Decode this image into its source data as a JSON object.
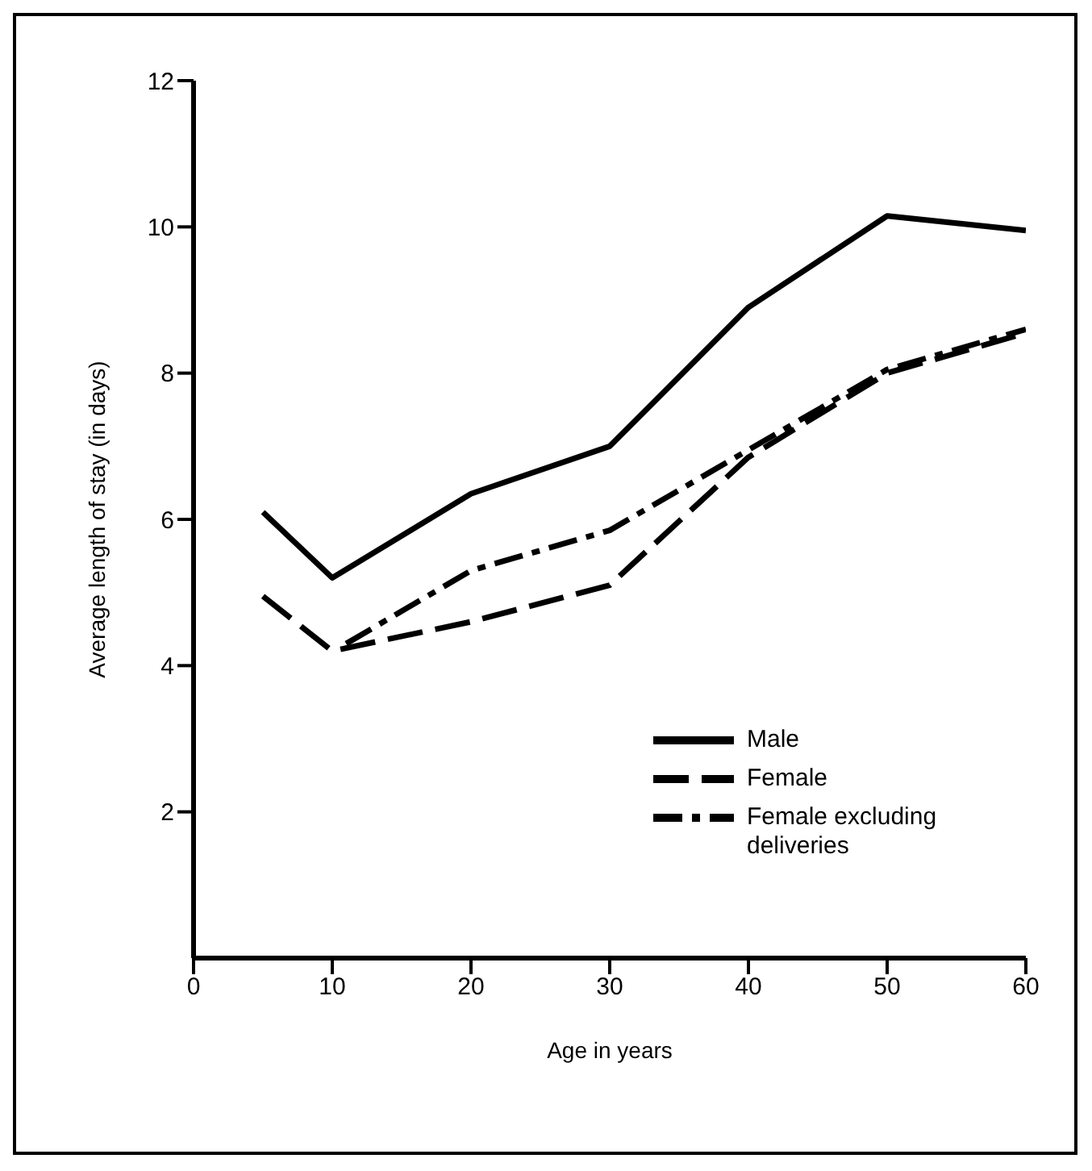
{
  "chart_data": {
    "type": "line",
    "xlabel": "Age in years",
    "ylabel": "Average length of stay (in days)",
    "xlim": [
      0,
      60
    ],
    "xticks": [
      0,
      10,
      20,
      30,
      40,
      50,
      60
    ],
    "ylim": [
      0,
      12
    ],
    "yticks": [
      2,
      4,
      6,
      8,
      10,
      12
    ],
    "grid": false,
    "legend": "bottom right",
    "marker": "none",
    "series": [
      {
        "name": "Male",
        "color": "#000000",
        "line_style": "solid",
        "x": [
          5,
          10,
          20,
          30,
          40,
          50,
          60
        ],
        "values": [
          6.1,
          5.2,
          6.35,
          7.0,
          8.9,
          10.15,
          9.95
        ]
      },
      {
        "name": "Female",
        "color": "#000000",
        "line_style": "dashed",
        "x": [
          5,
          10,
          20,
          30,
          40,
          50,
          60
        ],
        "values": [
          4.95,
          4.2,
          4.6,
          5.1,
          6.85,
          8.0,
          8.55
        ]
      },
      {
        "name": "Female excluding deliveries",
        "color": "#000000",
        "line_style": "dashdot",
        "x": [
          11,
          20,
          30,
          40,
          50,
          60
        ],
        "values": [
          4.3,
          5.3,
          5.85,
          6.95,
          8.05,
          8.6
        ]
      }
    ]
  }
}
